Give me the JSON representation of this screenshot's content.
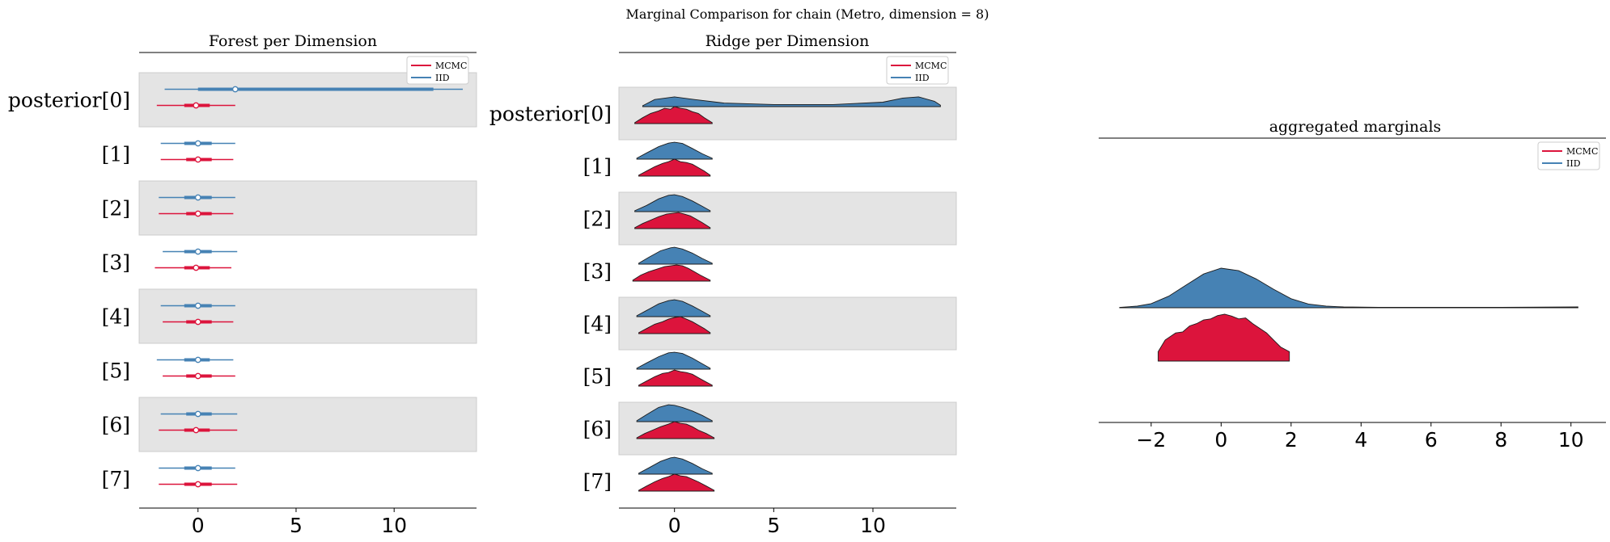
{
  "suptitle": "Marginal Comparison for chain (Metro, dimension = 8)",
  "colors": {
    "mcmc": "#dc143c",
    "iid": "#4682b4",
    "band": "#e4e4e4",
    "axis": "#000000"
  },
  "chart_data": [
    {
      "type": "forest",
      "title": "Forest per Dimension",
      "labels": [
        "posterior[0]",
        "[1]",
        "[2]",
        "[3]",
        "[4]",
        "[5]",
        "[6]",
        "[7]"
      ],
      "xlim": [
        -3,
        14.2
      ],
      "xticks": [
        0,
        5,
        10
      ],
      "legend": [
        "MCMC",
        "IID"
      ],
      "legend_loc": "top-right",
      "series": [
        {
          "name": "IID",
          "rows": [
            {
              "lo": -1.7,
              "q1": 0.0,
              "mid": 1.9,
              "q3": 12.0,
              "hi": 13.5
            },
            {
              "lo": -1.9,
              "q1": -0.7,
              "mid": 0.0,
              "q3": 0.7,
              "hi": 1.9
            },
            {
              "lo": -2.0,
              "q1": -0.7,
              "mid": 0.0,
              "q3": 0.7,
              "hi": 1.9
            },
            {
              "lo": -1.8,
              "q1": -0.7,
              "mid": 0.0,
              "q3": 0.7,
              "hi": 2.0
            },
            {
              "lo": -1.9,
              "q1": -0.7,
              "mid": 0.0,
              "q3": 0.7,
              "hi": 1.9
            },
            {
              "lo": -2.1,
              "q1": -0.7,
              "mid": 0.0,
              "q3": 0.6,
              "hi": 1.8
            },
            {
              "lo": -1.9,
              "q1": -0.6,
              "mid": 0.0,
              "q3": 0.7,
              "hi": 2.0
            },
            {
              "lo": -2.0,
              "q1": -0.7,
              "mid": 0.0,
              "q3": 0.7,
              "hi": 1.9
            }
          ]
        },
        {
          "name": "MCMC",
          "rows": [
            {
              "lo": -2.1,
              "q1": -0.7,
              "mid": -0.1,
              "q3": 0.6,
              "hi": 1.9
            },
            {
              "lo": -1.9,
              "q1": -0.6,
              "mid": 0.0,
              "q3": 0.7,
              "hi": 1.8
            },
            {
              "lo": -2.0,
              "q1": -0.6,
              "mid": 0.0,
              "q3": 0.7,
              "hi": 1.8
            },
            {
              "lo": -2.2,
              "q1": -0.7,
              "mid": -0.1,
              "q3": 0.6,
              "hi": 1.7
            },
            {
              "lo": -1.8,
              "q1": -0.6,
              "mid": 0.0,
              "q3": 0.7,
              "hi": 1.8
            },
            {
              "lo": -1.8,
              "q1": -0.6,
              "mid": 0.0,
              "q3": 0.7,
              "hi": 1.9
            },
            {
              "lo": -2.0,
              "q1": -0.7,
              "mid": -0.1,
              "q3": 0.6,
              "hi": 2.0
            },
            {
              "lo": -2.0,
              "q1": -0.7,
              "mid": 0.0,
              "q3": 0.7,
              "hi": 2.0
            }
          ]
        }
      ]
    },
    {
      "type": "ridge",
      "title": "Ridge per Dimension",
      "labels": [
        "posterior[0]",
        "[1]",
        "[2]",
        "[3]",
        "[4]",
        "[5]",
        "[6]",
        "[7]"
      ],
      "xlim": [
        -2.8,
        14.2
      ],
      "xticks": [
        0,
        5,
        10
      ],
      "legend": [
        "MCMC",
        "IID"
      ],
      "legend_loc": "top-right",
      "series": [
        {
          "name": "IID",
          "rows": [
            {
              "x": [
                -1.6,
                -1.0,
                0.0,
                1.0,
                2.5,
                5.0,
                8.0,
                10.5,
                11.5,
                12.3,
                13.1,
                13.4
              ],
              "y": [
                0.05,
                0.4,
                0.55,
                0.4,
                0.2,
                0.12,
                0.12,
                0.25,
                0.48,
                0.55,
                0.3,
                0.08
              ]
            },
            {
              "x": [
                -1.9,
                -1.4,
                -0.8,
                -0.3,
                0.0,
                0.4,
                0.9,
                1.4,
                1.9
              ],
              "y": [
                0.05,
                0.35,
                0.7,
                0.9,
                0.95,
                0.88,
                0.6,
                0.3,
                0.05
              ]
            },
            {
              "x": [
                -2.0,
                -1.4,
                -0.8,
                -0.3,
                0.0,
                0.4,
                0.9,
                1.4,
                1.8
              ],
              "y": [
                0.05,
                0.35,
                0.72,
                0.92,
                0.95,
                0.85,
                0.6,
                0.3,
                0.05
              ]
            },
            {
              "x": [
                -1.8,
                -1.3,
                -0.7,
                -0.2,
                0.0,
                0.4,
                0.9,
                1.4,
                1.9
              ],
              "y": [
                0.05,
                0.38,
                0.75,
                0.92,
                0.95,
                0.85,
                0.62,
                0.32,
                0.05
              ]
            },
            {
              "x": [
                -1.9,
                -1.4,
                -0.8,
                -0.3,
                0.0,
                0.4,
                0.9,
                1.4,
                1.8
              ],
              "y": [
                0.05,
                0.35,
                0.72,
                0.9,
                0.95,
                0.86,
                0.6,
                0.3,
                0.05
              ]
            },
            {
              "x": [
                -1.9,
                -1.4,
                -0.8,
                -0.3,
                0.0,
                0.4,
                0.9,
                1.4,
                1.8
              ],
              "y": [
                0.05,
                0.35,
                0.7,
                0.92,
                0.95,
                0.88,
                0.62,
                0.3,
                0.05
              ]
            },
            {
              "x": [
                -1.9,
                -1.4,
                -0.8,
                -0.3,
                0.0,
                0.4,
                0.9,
                1.4,
                1.9
              ],
              "y": [
                0.05,
                0.4,
                0.8,
                0.95,
                0.92,
                0.8,
                0.6,
                0.35,
                0.05
              ]
            },
            {
              "x": [
                -1.8,
                -1.3,
                -0.7,
                -0.2,
                0.0,
                0.4,
                0.9,
                1.4,
                1.9
              ],
              "y": [
                0.05,
                0.35,
                0.72,
                0.92,
                0.95,
                0.85,
                0.6,
                0.3,
                0.05
              ]
            }
          ]
        },
        {
          "name": "MCMC",
          "rows": [
            {
              "x": [
                -2.0,
                -1.6,
                -1.2,
                -0.8,
                -0.5,
                -0.2,
                0.0,
                0.3,
                0.6,
                0.9,
                1.2,
                1.5,
                1.9
              ],
              "y": [
                0.05,
                0.35,
                0.6,
                0.75,
                0.9,
                0.85,
                1.0,
                0.9,
                0.85,
                0.7,
                0.6,
                0.35,
                0.05
              ]
            },
            {
              "x": [
                -1.8,
                -1.4,
                -1.0,
                -0.6,
                -0.3,
                0.0,
                0.3,
                0.6,
                0.9,
                1.2,
                1.5,
                1.8
              ],
              "y": [
                0.05,
                0.3,
                0.55,
                0.75,
                0.85,
                1.0,
                0.85,
                0.8,
                0.7,
                0.5,
                0.3,
                0.05
              ]
            },
            {
              "x": [
                -2.0,
                -1.6,
                -1.2,
                -0.8,
                -0.4,
                -0.1,
                0.2,
                0.5,
                0.8,
                1.1,
                1.4,
                1.8
              ],
              "y": [
                0.05,
                0.3,
                0.5,
                0.7,
                0.85,
                0.9,
                0.95,
                0.85,
                0.75,
                0.55,
                0.35,
                0.05
              ]
            },
            {
              "x": [
                -2.1,
                -1.7,
                -1.3,
                -0.9,
                -0.5,
                -0.2,
                0.1,
                0.4,
                0.7,
                1.0,
                1.3,
                1.8
              ],
              "y": [
                0.05,
                0.35,
                0.55,
                0.7,
                0.85,
                0.9,
                0.95,
                0.9,
                0.75,
                0.55,
                0.35,
                0.05
              ]
            },
            {
              "x": [
                -1.8,
                -1.4,
                -1.0,
                -0.6,
                -0.3,
                0.0,
                0.3,
                0.6,
                0.9,
                1.2,
                1.5,
                1.8
              ],
              "y": [
                0.05,
                0.3,
                0.55,
                0.7,
                0.85,
                0.95,
                1.0,
                0.85,
                0.7,
                0.5,
                0.3,
                0.05
              ]
            },
            {
              "x": [
                -1.8,
                -1.4,
                -1.0,
                -0.6,
                -0.3,
                0.0,
                0.3,
                0.6,
                0.9,
                1.2,
                1.5,
                1.9
              ],
              "y": [
                0.05,
                0.3,
                0.55,
                0.75,
                0.8,
                0.95,
                0.85,
                0.8,
                0.7,
                0.5,
                0.3,
                0.05
              ]
            },
            {
              "x": [
                -1.9,
                -1.5,
                -1.1,
                -0.7,
                -0.3,
                0.0,
                0.3,
                0.6,
                0.9,
                1.2,
                1.6,
                2.0
              ],
              "y": [
                0.05,
                0.3,
                0.5,
                0.7,
                0.85,
                1.0,
                0.9,
                0.85,
                0.7,
                0.5,
                0.3,
                0.05
              ]
            },
            {
              "x": [
                -1.8,
                -1.4,
                -1.0,
                -0.6,
                -0.3,
                0.0,
                0.3,
                0.6,
                0.9,
                1.2,
                1.6,
                2.0
              ],
              "y": [
                0.05,
                0.3,
                0.55,
                0.75,
                0.85,
                1.0,
                0.9,
                0.85,
                0.7,
                0.55,
                0.3,
                0.05
              ]
            }
          ]
        }
      ]
    },
    {
      "type": "ridge",
      "title": "aggregated marginals",
      "xlim": [
        -3.5,
        11.0
      ],
      "xticks": [
        -2,
        0,
        2,
        4,
        6,
        8,
        10
      ],
      "legend": [
        "MCMC",
        "IID"
      ],
      "legend_loc": "top-right",
      "series": [
        {
          "name": "IID",
          "x": [
            -2.9,
            -2.4,
            -2.0,
            -1.5,
            -1.0,
            -0.5,
            0.0,
            0.5,
            1.0,
            1.5,
            2.0,
            2.5,
            3.0,
            3.5,
            4.5,
            6.0,
            8.0,
            10.2
          ],
          "y": [
            0.01,
            0.04,
            0.1,
            0.28,
            0.55,
            0.82,
            0.96,
            0.9,
            0.7,
            0.45,
            0.22,
            0.09,
            0.04,
            0.02,
            0.01,
            0.01,
            0.01,
            0.02
          ]
        },
        {
          "name": "MCMC",
          "x": [
            -1.8,
            -1.6,
            -1.3,
            -1.1,
            -0.9,
            -0.7,
            -0.5,
            -0.3,
            -0.1,
            0.1,
            0.3,
            0.5,
            0.7,
            0.9,
            1.1,
            1.3,
            1.5,
            1.7,
            1.95
          ],
          "y": [
            0.2,
            0.45,
            0.6,
            0.62,
            0.75,
            0.8,
            0.88,
            0.9,
            0.97,
            1.0,
            0.96,
            0.9,
            0.92,
            0.8,
            0.7,
            0.6,
            0.45,
            0.3,
            0.2
          ]
        }
      ]
    }
  ]
}
